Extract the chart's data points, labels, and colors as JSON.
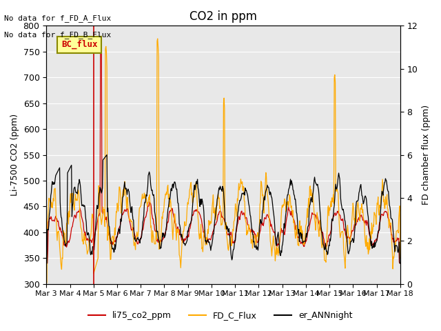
{
  "title": "CO2 in ppm",
  "ylabel_left": "Li-7500 CO2 (ppm)",
  "ylabel_right": "FD chamber flux (ppm)",
  "annotation_lines": [
    "No data for f_FD_A_Flux",
    "No data for f_FD_B_Flux"
  ],
  "bc_flux_label": "BC_flux",
  "xlim_days": [
    0,
    15
  ],
  "ylim_left": [
    300,
    800
  ],
  "ylim_right": [
    0,
    12
  ],
  "xtick_labels": [
    "Mar 3",
    "Mar 4",
    "Mar 5",
    "Mar 6",
    "Mar 7",
    "Mar 8",
    "Mar 9",
    "Mar 10",
    "Mar 11",
    "Mar 12",
    "Mar 13",
    "Mar 14",
    "Mar 15",
    "Mar 16",
    "Mar 17",
    "Mar 18"
  ],
  "xtick_positions": [
    0,
    1,
    2,
    3,
    4,
    5,
    6,
    7,
    8,
    9,
    10,
    11,
    12,
    13,
    14,
    15
  ],
  "color_red": "#cc0000",
  "color_orange": "#ffaa00",
  "color_black": "#000000",
  "color_bg": "#e8e8e8",
  "legend_labels": [
    "li75_co2_ppm",
    "FD_C_Flux",
    "er_ANNnight"
  ],
  "bc_flux_box_color": "#ffff99",
  "bc_flux_text_color": "#cc0000",
  "bc_flux_border_color": "#888800"
}
